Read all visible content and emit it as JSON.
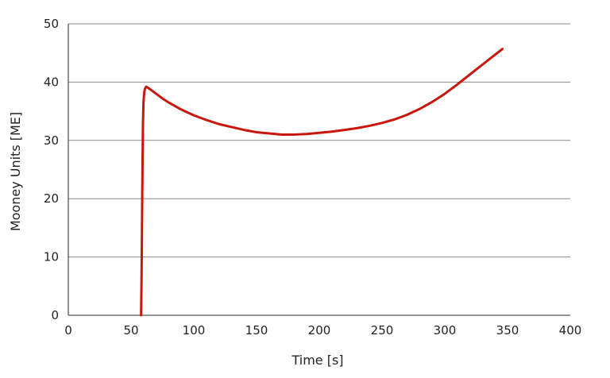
{
  "chart_data": {
    "type": "line",
    "title": "",
    "xlabel": "Time [s]",
    "ylabel": "Mooney Units [ME]",
    "xlim": [
      0,
      400
    ],
    "ylim": [
      0,
      50
    ],
    "x_ticks": [
      0,
      50,
      100,
      150,
      200,
      250,
      300,
      350,
      400
    ],
    "y_ticks": [
      0,
      10,
      20,
      30,
      40,
      50
    ],
    "grid": "horizontal",
    "legend": "none",
    "series": [
      {
        "color": "#c8170d",
        "points": [
          [
            58,
            0
          ],
          [
            58.3,
            5
          ],
          [
            58.6,
            12
          ],
          [
            58.9,
            20
          ],
          [
            59.2,
            27
          ],
          [
            59.5,
            33
          ],
          [
            59.9,
            36.5
          ],
          [
            60.4,
            38
          ],
          [
            61,
            38.8
          ],
          [
            62,
            39.2
          ],
          [
            63,
            39.1
          ],
          [
            65,
            38.8
          ],
          [
            70,
            38.0
          ],
          [
            75,
            37.2
          ],
          [
            80,
            36.5
          ],
          [
            90,
            35.3
          ],
          [
            100,
            34.3
          ],
          [
            110,
            33.5
          ],
          [
            120,
            32.8
          ],
          [
            130,
            32.3
          ],
          [
            140,
            31.8
          ],
          [
            150,
            31.4
          ],
          [
            160,
            31.2
          ],
          [
            170,
            31.0
          ],
          [
            175,
            31.0
          ],
          [
            180,
            31.0
          ],
          [
            190,
            31.1
          ],
          [
            200,
            31.3
          ],
          [
            210,
            31.5
          ],
          [
            220,
            31.8
          ],
          [
            230,
            32.1
          ],
          [
            240,
            32.5
          ],
          [
            250,
            33.0
          ],
          [
            260,
            33.6
          ],
          [
            270,
            34.4
          ],
          [
            280,
            35.4
          ],
          [
            290,
            36.6
          ],
          [
            300,
            38.0
          ],
          [
            310,
            39.6
          ],
          [
            320,
            41.3
          ],
          [
            330,
            43.0
          ],
          [
            340,
            44.7
          ],
          [
            346,
            45.7
          ]
        ]
      }
    ]
  }
}
